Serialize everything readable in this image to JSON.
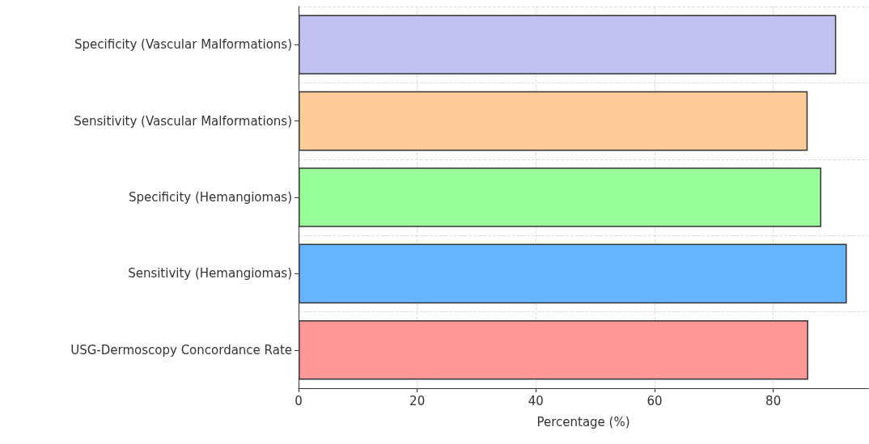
{
  "chart_data": {
    "type": "bar",
    "orientation": "horizontal",
    "xlabel": "Percentage (%)",
    "categories": [
      "Specificity (Vascular Malformations)",
      "Sensitivity (Vascular Malformations)",
      "Specificity (Hemangiomas)",
      "Sensitivity (Hemangiomas)",
      "USG-Dermoscopy Concordance Rate"
    ],
    "values": [
      90.6,
      85.8,
      88.1,
      92.4,
      85.9
    ],
    "colors": [
      "#c2c2f0",
      "#ffcc99",
      "#99ff99",
      "#66b3ff",
      "#ff9999"
    ],
    "xlim": [
      0,
      96
    ],
    "xticks": [
      0,
      20,
      40,
      60,
      80
    ],
    "grid": true
  }
}
